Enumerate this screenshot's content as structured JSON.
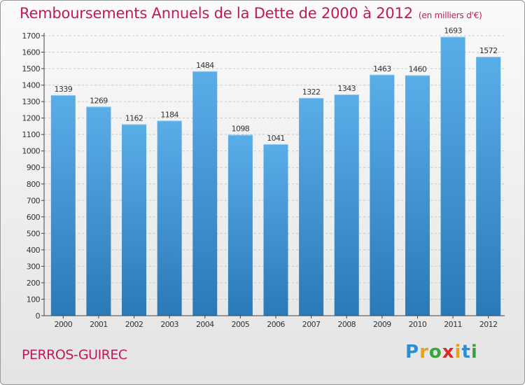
{
  "header": {
    "title": "Remboursements Annuels de la Dette de 2000 à 2012",
    "unit": "(en milliers d'€)"
  },
  "footer": {
    "city": "PERROS-GUIREC",
    "logo": "Proxiti"
  },
  "colors": {
    "title": "#c2185b",
    "bar_top": "#5aaee8",
    "bar_bottom": "#2a79b8"
  },
  "chart_data": {
    "type": "bar",
    "title": "Remboursements Annuels de la Dette de 2000 à 2012",
    "subtitle": "(en milliers d'€)",
    "categories": [
      "2000",
      "2001",
      "2002",
      "2003",
      "2004",
      "2005",
      "2006",
      "2007",
      "2008",
      "2009",
      "2010",
      "2011",
      "2012"
    ],
    "values": [
      1339,
      1269,
      1162,
      1184,
      1484,
      1098,
      1041,
      1322,
      1343,
      1463,
      1460,
      1693,
      1572
    ],
    "ylim": [
      0,
      1700
    ],
    "yticks": [
      0,
      100,
      200,
      300,
      400,
      500,
      600,
      700,
      800,
      900,
      1000,
      1100,
      1200,
      1300,
      1400,
      1500,
      1600,
      1700
    ],
    "grid": true,
    "xlabel": "",
    "ylabel": ""
  }
}
